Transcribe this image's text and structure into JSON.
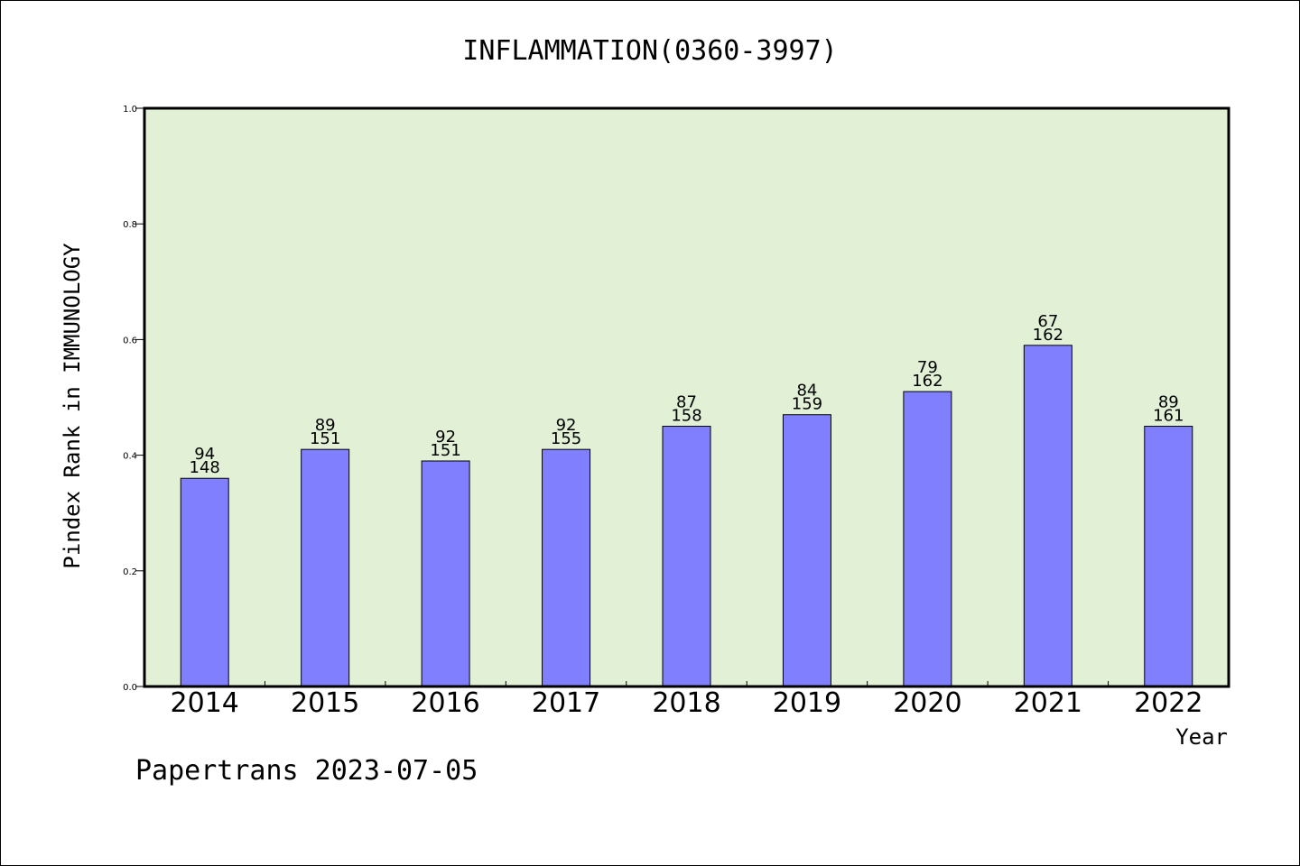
{
  "chart_data": {
    "type": "bar",
    "title": "INFLAMMATION(0360-3997)",
    "xlabel": "Year",
    "ylabel": "Pindex Rank in IMMUNOLOGY",
    "ylim": [
      0.0,
      1.0
    ],
    "yticks": [
      "0.0",
      "0.2",
      "0.4",
      "0.6",
      "0.8",
      "1.0"
    ],
    "categories": [
      "2014",
      "2015",
      "2016",
      "2017",
      "2018",
      "2019",
      "2020",
      "2021",
      "2022"
    ],
    "values": [
      0.36,
      0.41,
      0.39,
      0.41,
      0.45,
      0.47,
      0.51,
      0.59,
      0.45
    ],
    "labels_top": [
      "94",
      "89",
      "92",
      "92",
      "87",
      "84",
      "79",
      "67",
      "89"
    ],
    "labels_bottom": [
      "148",
      "151",
      "151",
      "155",
      "158",
      "159",
      "162",
      "162",
      "161"
    ],
    "grid": false,
    "colors": {
      "plot_background": "#e2f0d6",
      "bar_fill": "#8080ff",
      "bar_stroke": "#000000"
    }
  },
  "footer": {
    "text": "Papertrans 2023-07-05"
  }
}
